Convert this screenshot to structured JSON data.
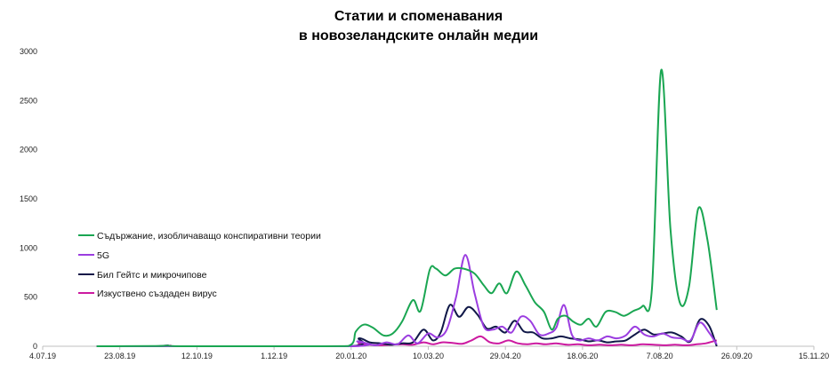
{
  "chart_data": {
    "type": "line",
    "title_line1": "Статии и споменавания",
    "title_line2": "в новозеландските онлайн медии",
    "ylim": [
      0,
      3000
    ],
    "yticks": [
      0,
      500,
      1000,
      1500,
      2000,
      2500,
      3000
    ],
    "xlim": [
      "2019-07-04",
      "2020-11-15"
    ],
    "xticks": [
      {
        "date": "2019-07-04",
        "label": "4.07.19"
      },
      {
        "date": "2019-08-23",
        "label": "23.08.19"
      },
      {
        "date": "2019-10-12",
        "label": "12.10.19"
      },
      {
        "date": "2019-12-01",
        "label": "1.12.19"
      },
      {
        "date": "2020-01-20",
        "label": "20.01.20"
      },
      {
        "date": "2020-03-10",
        "label": "10.03.20"
      },
      {
        "date": "2020-04-29",
        "label": "29.04.20"
      },
      {
        "date": "2020-06-18",
        "label": "18.06.20"
      },
      {
        "date": "2020-08-07",
        "label": "7.08.20"
      },
      {
        "date": "2020-09-26",
        "label": "26.09.20"
      },
      {
        "date": "2020-11-15",
        "label": "15.11.20"
      }
    ],
    "legend_position": "left",
    "series": [
      {
        "name": "Съдържание, изобличаващо конспиративни теории",
        "color": "#1aa652",
        "points": [
          [
            "2019-08-08",
            0
          ],
          [
            "2019-09-15",
            2
          ],
          [
            "2019-09-23",
            5
          ],
          [
            "2019-10-05",
            0
          ],
          [
            "2019-12-20",
            0
          ],
          [
            "2020-01-18",
            2
          ],
          [
            "2020-01-23",
            150
          ],
          [
            "2020-01-28",
            220
          ],
          [
            "2020-02-03",
            190
          ],
          [
            "2020-02-10",
            110
          ],
          [
            "2020-02-16",
            130
          ],
          [
            "2020-02-22",
            250
          ],
          [
            "2020-02-29",
            470
          ],
          [
            "2020-03-05",
            360
          ],
          [
            "2020-03-11",
            780
          ],
          [
            "2020-03-15",
            790
          ],
          [
            "2020-03-21",
            720
          ],
          [
            "2020-03-27",
            790
          ],
          [
            "2020-04-02",
            790
          ],
          [
            "2020-04-09",
            740
          ],
          [
            "2020-04-15",
            620
          ],
          [
            "2020-04-20",
            540
          ],
          [
            "2020-04-25",
            640
          ],
          [
            "2020-04-30",
            540
          ],
          [
            "2020-05-06",
            760
          ],
          [
            "2020-05-12",
            620
          ],
          [
            "2020-05-18",
            450
          ],
          [
            "2020-05-24",
            350
          ],
          [
            "2020-05-29",
            170
          ],
          [
            "2020-06-02",
            280
          ],
          [
            "2020-06-07",
            310
          ],
          [
            "2020-06-12",
            250
          ],
          [
            "2020-06-17",
            220
          ],
          [
            "2020-06-22",
            280
          ],
          [
            "2020-06-27",
            200
          ],
          [
            "2020-07-03",
            350
          ],
          [
            "2020-07-09",
            350
          ],
          [
            "2020-07-15",
            310
          ],
          [
            "2020-07-21",
            360
          ],
          [
            "2020-07-27",
            410
          ],
          [
            "2020-08-02",
            580
          ],
          [
            "2020-08-08",
            2810
          ],
          [
            "2020-08-14",
            1200
          ],
          [
            "2020-08-20",
            450
          ],
          [
            "2020-08-26",
            600
          ],
          [
            "2020-09-01",
            1400
          ],
          [
            "2020-09-07",
            1080
          ],
          [
            "2020-09-13",
            370
          ]
        ]
      },
      {
        "name": "5G",
        "color": "#9b3de0",
        "points": [
          [
            "2019-08-08",
            0
          ],
          [
            "2020-01-18",
            0
          ],
          [
            "2020-01-24",
            50
          ],
          [
            "2020-01-30",
            30
          ],
          [
            "2020-02-05",
            10
          ],
          [
            "2020-02-12",
            40
          ],
          [
            "2020-02-19",
            20
          ],
          [
            "2020-02-26",
            110
          ],
          [
            "2020-03-03",
            30
          ],
          [
            "2020-03-10",
            130
          ],
          [
            "2020-03-16",
            90
          ],
          [
            "2020-03-22",
            170
          ],
          [
            "2020-03-28",
            500
          ],
          [
            "2020-04-03",
            930
          ],
          [
            "2020-04-09",
            540
          ],
          [
            "2020-04-15",
            200
          ],
          [
            "2020-04-21",
            170
          ],
          [
            "2020-04-27",
            200
          ],
          [
            "2020-05-03",
            140
          ],
          [
            "2020-05-09",
            300
          ],
          [
            "2020-05-15",
            260
          ],
          [
            "2020-05-21",
            120
          ],
          [
            "2020-05-27",
            130
          ],
          [
            "2020-06-01",
            190
          ],
          [
            "2020-06-06",
            420
          ],
          [
            "2020-06-11",
            120
          ],
          [
            "2020-06-16",
            60
          ],
          [
            "2020-06-22",
            80
          ],
          [
            "2020-06-28",
            60
          ],
          [
            "2020-07-04",
            100
          ],
          [
            "2020-07-10",
            80
          ],
          [
            "2020-07-16",
            110
          ],
          [
            "2020-07-22",
            200
          ],
          [
            "2020-07-28",
            120
          ],
          [
            "2020-08-03",
            100
          ],
          [
            "2020-08-09",
            130
          ],
          [
            "2020-08-15",
            90
          ],
          [
            "2020-08-21",
            80
          ],
          [
            "2020-08-27",
            60
          ],
          [
            "2020-09-02",
            240
          ],
          [
            "2020-09-08",
            140
          ],
          [
            "2020-09-13",
            20
          ]
        ]
      },
      {
        "name": "Бил Гейтс и микрочипове",
        "color": "#101848",
        "points": [
          [
            "2019-08-08",
            0
          ],
          [
            "2019-09-15",
            0
          ],
          [
            "2019-09-23",
            8
          ],
          [
            "2019-10-05",
            0
          ],
          [
            "2020-01-18",
            0
          ],
          [
            "2020-01-25",
            80
          ],
          [
            "2020-02-01",
            40
          ],
          [
            "2020-02-08",
            30
          ],
          [
            "2020-02-15",
            15
          ],
          [
            "2020-02-22",
            30
          ],
          [
            "2020-02-29",
            40
          ],
          [
            "2020-03-07",
            170
          ],
          [
            "2020-03-13",
            60
          ],
          [
            "2020-03-18",
            140
          ],
          [
            "2020-03-24",
            420
          ],
          [
            "2020-03-30",
            300
          ],
          [
            "2020-04-05",
            400
          ],
          [
            "2020-04-11",
            320
          ],
          [
            "2020-04-17",
            180
          ],
          [
            "2020-04-23",
            200
          ],
          [
            "2020-04-29",
            140
          ],
          [
            "2020-05-05",
            260
          ],
          [
            "2020-05-11",
            150
          ],
          [
            "2020-05-17",
            140
          ],
          [
            "2020-05-23",
            80
          ],
          [
            "2020-05-29",
            80
          ],
          [
            "2020-06-04",
            100
          ],
          [
            "2020-06-10",
            80
          ],
          [
            "2020-06-16",
            70
          ],
          [
            "2020-06-22",
            50
          ],
          [
            "2020-06-28",
            60
          ],
          [
            "2020-07-04",
            40
          ],
          [
            "2020-07-10",
            50
          ],
          [
            "2020-07-16",
            60
          ],
          [
            "2020-07-22",
            120
          ],
          [
            "2020-07-28",
            170
          ],
          [
            "2020-08-03",
            120
          ],
          [
            "2020-08-09",
            130
          ],
          [
            "2020-08-15",
            140
          ],
          [
            "2020-08-21",
            100
          ],
          [
            "2020-08-27",
            50
          ],
          [
            "2020-09-02",
            270
          ],
          [
            "2020-09-08",
            210
          ],
          [
            "2020-09-13",
            0
          ]
        ]
      },
      {
        "name": "Изкуствено създаден вирус",
        "color": "#cc1aa0",
        "points": [
          [
            "2019-08-08",
            0
          ],
          [
            "2019-09-20",
            0
          ],
          [
            "2019-09-25",
            5
          ],
          [
            "2019-10-01",
            0
          ],
          [
            "2020-01-18",
            0
          ],
          [
            "2020-01-25",
            30
          ],
          [
            "2020-02-01",
            15
          ],
          [
            "2020-02-08",
            10
          ],
          [
            "2020-02-15",
            15
          ],
          [
            "2020-02-22",
            20
          ],
          [
            "2020-02-29",
            15
          ],
          [
            "2020-03-07",
            40
          ],
          [
            "2020-03-13",
            20
          ],
          [
            "2020-03-19",
            40
          ],
          [
            "2020-03-25",
            35
          ],
          [
            "2020-04-01",
            25
          ],
          [
            "2020-04-07",
            60
          ],
          [
            "2020-04-13",
            100
          ],
          [
            "2020-04-19",
            40
          ],
          [
            "2020-04-25",
            30
          ],
          [
            "2020-05-01",
            60
          ],
          [
            "2020-05-07",
            30
          ],
          [
            "2020-05-13",
            20
          ],
          [
            "2020-05-19",
            30
          ],
          [
            "2020-05-25",
            20
          ],
          [
            "2020-06-01",
            30
          ],
          [
            "2020-06-08",
            15
          ],
          [
            "2020-06-15",
            20
          ],
          [
            "2020-06-22",
            10
          ],
          [
            "2020-06-29",
            15
          ],
          [
            "2020-07-06",
            10
          ],
          [
            "2020-07-13",
            15
          ],
          [
            "2020-07-20",
            10
          ],
          [
            "2020-07-27",
            20
          ],
          [
            "2020-08-03",
            15
          ],
          [
            "2020-08-10",
            10
          ],
          [
            "2020-08-17",
            15
          ],
          [
            "2020-08-24",
            10
          ],
          [
            "2020-08-31",
            20
          ],
          [
            "2020-09-06",
            30
          ],
          [
            "2020-09-13",
            60
          ]
        ]
      }
    ]
  }
}
